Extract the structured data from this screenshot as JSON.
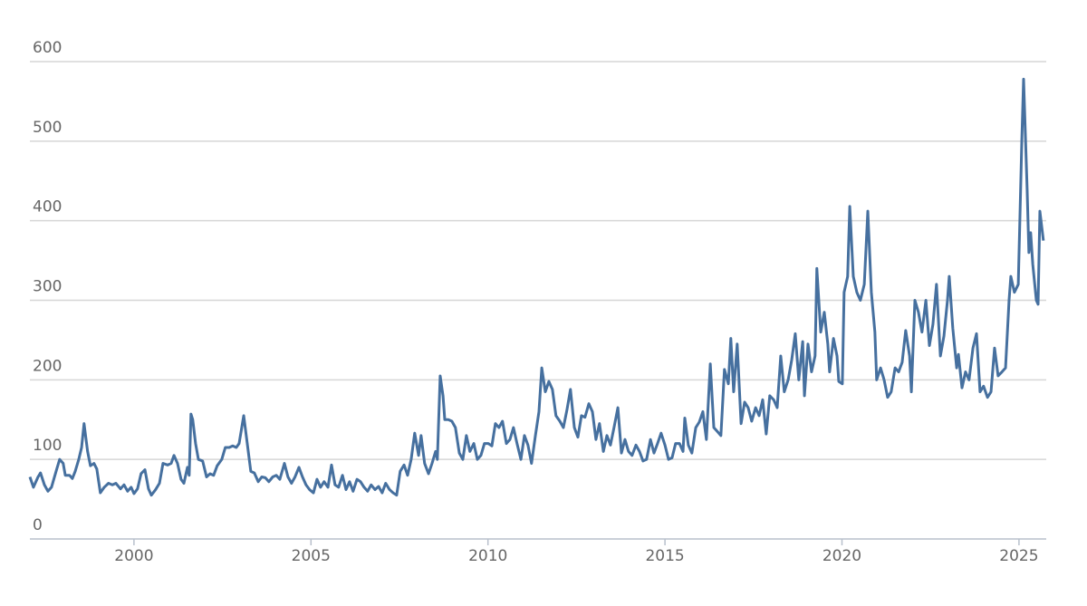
{
  "chart_data": {
    "type": "line",
    "color": "#46709f",
    "grid": true,
    "xlim": [
      1997.06,
      2025.77
    ],
    "xticks": [
      2000,
      2005,
      2010,
      2015,
      2020,
      2025
    ],
    "ylim": [
      0,
      600
    ],
    "yticks": [
      0,
      100,
      200,
      300,
      400,
      500,
      600
    ],
    "x": [
      1997.06,
      1997.16,
      1997.29,
      1997.36,
      1997.47,
      1997.57,
      1997.67,
      1997.8,
      1997.9,
      1998.0,
      1998.06,
      1998.18,
      1998.26,
      1998.34,
      1998.44,
      1998.52,
      1998.59,
      1998.69,
      1998.77,
      1998.87,
      1998.95,
      1999.05,
      1999.16,
      1999.28,
      1999.39,
      1999.49,
      1999.62,
      1999.72,
      1999.82,
      1999.92,
      2000.0,
      2000.1,
      2000.2,
      2000.31,
      2000.41,
      2000.49,
      2000.61,
      2000.72,
      2000.82,
      2000.95,
      2001.05,
      2001.13,
      2001.23,
      2001.33,
      2001.41,
      2001.51,
      2001.56,
      2001.61,
      2001.66,
      2001.74,
      2001.82,
      2001.94,
      2002.05,
      2002.15,
      2002.25,
      2002.35,
      2002.48,
      2002.58,
      2002.69,
      2002.79,
      2002.89,
      2002.97,
      2003.1,
      2003.2,
      2003.3,
      2003.4,
      2003.51,
      2003.61,
      2003.71,
      2003.81,
      2003.92,
      2004.02,
      2004.12,
      2004.25,
      2004.35,
      2004.45,
      2004.55,
      2004.66,
      2004.76,
      2004.86,
      2004.96,
      2005.07,
      2005.17,
      2005.27,
      2005.37,
      2005.48,
      2005.58,
      2005.68,
      2005.78,
      2005.89,
      2005.99,
      2006.09,
      2006.19,
      2006.3,
      2006.4,
      2006.5,
      2006.6,
      2006.7,
      2006.81,
      2006.91,
      2007.01,
      2007.11,
      2007.22,
      2007.32,
      2007.42,
      2007.52,
      2007.63,
      2007.73,
      2007.83,
      2007.93,
      2008.04,
      2008.11,
      2008.21,
      2008.32,
      2008.42,
      2008.52,
      2008.57,
      2008.65,
      2008.73,
      2008.78,
      2008.88,
      2008.98,
      2009.08,
      2009.19,
      2009.29,
      2009.39,
      2009.49,
      2009.6,
      2009.7,
      2009.8,
      2009.9,
      2010.01,
      2010.11,
      2010.21,
      2010.31,
      2010.41,
      2010.52,
      2010.62,
      2010.72,
      2010.82,
      2010.93,
      2011.03,
      2011.13,
      2011.23,
      2011.34,
      2011.44,
      2011.52,
      2011.62,
      2011.72,
      2011.82,
      2011.92,
      2012.03,
      2012.13,
      2012.23,
      2012.33,
      2012.44,
      2012.54,
      2012.64,
      2012.74,
      2012.85,
      2012.95,
      2013.05,
      2013.15,
      2013.26,
      2013.36,
      2013.46,
      2013.56,
      2013.67,
      2013.77,
      2013.87,
      2013.97,
      2014.07,
      2014.18,
      2014.28,
      2014.38,
      2014.48,
      2014.59,
      2014.69,
      2014.79,
      2014.89,
      2015.0,
      2015.1,
      2015.2,
      2015.3,
      2015.41,
      2015.51,
      2015.56,
      2015.66,
      2015.76,
      2015.87,
      2015.97,
      2016.07,
      2016.17,
      2016.28,
      2016.38,
      2016.48,
      2016.58,
      2016.68,
      2016.79,
      2016.86,
      2016.94,
      2017.04,
      2017.15,
      2017.25,
      2017.35,
      2017.45,
      2017.56,
      2017.66,
      2017.76,
      2017.86,
      2017.96,
      2018.07,
      2018.17,
      2018.27,
      2018.37,
      2018.48,
      2018.58,
      2018.68,
      2018.78,
      2018.89,
      2018.94,
      2019.04,
      2019.14,
      2019.24,
      2019.29,
      2019.4,
      2019.5,
      2019.6,
      2019.65,
      2019.76,
      2019.86,
      2019.91,
      2020.01,
      2020.06,
      2020.16,
      2020.22,
      2020.32,
      2020.42,
      2020.52,
      2020.63,
      2020.73,
      2020.83,
      2020.93,
      2020.98,
      2021.09,
      2021.19,
      2021.29,
      2021.39,
      2021.5,
      2021.6,
      2021.7,
      2021.8,
      2021.91,
      2021.96,
      2022.06,
      2022.16,
      2022.26,
      2022.37,
      2022.47,
      2022.57,
      2022.67,
      2022.78,
      2022.88,
      2022.98,
      2023.03,
      2023.13,
      2023.24,
      2023.29,
      2023.39,
      2023.49,
      2023.59,
      2023.7,
      2023.8,
      2023.9,
      2024.0,
      2024.11,
      2024.21,
      2024.31,
      2024.41,
      2024.52,
      2024.62,
      2024.72,
      2024.77,
      2024.87,
      2024.98,
      2025.08,
      2025.13,
      2025.23,
      2025.28,
      2025.33,
      2025.39,
      2025.49,
      2025.54,
      2025.59,
      2025.69
    ],
    "values": [
      78,
      65,
      78,
      83,
      68,
      60,
      65,
      85,
      100,
      95,
      80,
      80,
      76,
      85,
      100,
      115,
      145,
      110,
      92,
      95,
      88,
      58,
      65,
      70,
      68,
      70,
      63,
      68,
      60,
      65,
      57,
      63,
      82,
      87,
      63,
      55,
      62,
      70,
      95,
      93,
      95,
      105,
      95,
      75,
      70,
      90,
      80,
      157,
      150,
      120,
      100,
      98,
      78,
      82,
      80,
      92,
      100,
      115,
      115,
      117,
      115,
      120,
      155,
      120,
      85,
      83,
      72,
      78,
      77,
      72,
      78,
      80,
      75,
      95,
      78,
      70,
      78,
      90,
      78,
      68,
      62,
      58,
      75,
      65,
      72,
      65,
      93,
      68,
      65,
      80,
      62,
      72,
      60,
      75,
      72,
      65,
      60,
      68,
      62,
      66,
      58,
      70,
      62,
      58,
      55,
      85,
      93,
      80,
      100,
      133,
      105,
      130,
      95,
      82,
      95,
      110,
      100,
      205,
      180,
      150,
      150,
      148,
      140,
      108,
      100,
      130,
      110,
      120,
      100,
      105,
      120,
      120,
      117,
      145,
      140,
      148,
      120,
      125,
      140,
      120,
      100,
      130,
      118,
      95,
      130,
      160,
      215,
      185,
      198,
      188,
      155,
      148,
      140,
      162,
      188,
      140,
      128,
      155,
      153,
      170,
      160,
      125,
      145,
      110,
      130,
      118,
      140,
      165,
      108,
      125,
      110,
      105,
      118,
      110,
      98,
      100,
      125,
      108,
      120,
      133,
      118,
      100,
      102,
      120,
      120,
      110,
      152,
      118,
      108,
      140,
      147,
      160,
      125,
      220,
      140,
      135,
      130,
      213,
      195,
      252,
      185,
      245,
      145,
      172,
      165,
      148,
      165,
      155,
      175,
      132,
      180,
      175,
      165,
      230,
      185,
      200,
      225,
      258,
      200,
      248,
      180,
      245,
      210,
      230,
      340,
      260,
      285,
      245,
      210,
      252,
      230,
      198,
      195,
      310,
      330,
      418,
      330,
      310,
      300,
      320,
      412,
      310,
      260,
      200,
      215,
      200,
      178,
      185,
      215,
      210,
      222,
      262,
      230,
      185,
      300,
      285,
      260,
      300,
      243,
      270,
      320,
      230,
      255,
      300,
      330,
      265,
      215,
      232,
      190,
      210,
      200,
      240,
      258,
      185,
      192,
      178,
      185,
      240,
      205,
      210,
      215,
      300,
      330,
      310,
      320,
      500,
      578,
      440,
      360,
      385,
      345,
      300,
      295,
      412,
      375
    ]
  }
}
